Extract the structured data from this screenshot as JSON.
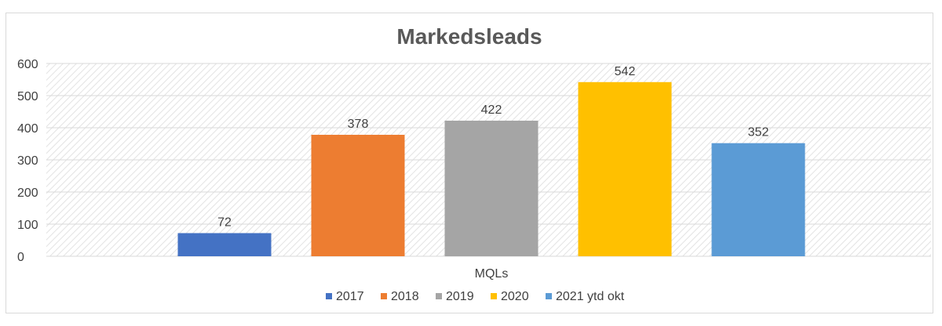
{
  "chart_data": {
    "type": "bar",
    "title": "Markedsleads",
    "categories": [
      "MQLs"
    ],
    "series": [
      {
        "name": "2017",
        "values": [
          72
        ],
        "color": "#4472c4"
      },
      {
        "name": "2018",
        "values": [
          378
        ],
        "color": "#ed7d31"
      },
      {
        "name": "2019",
        "values": [
          422
        ],
        "color": "#a5a5a5"
      },
      {
        "name": "2020",
        "values": [
          542
        ],
        "color": "#ffc000"
      },
      {
        "name": "2021 ytd okt",
        "values": [
          352
        ],
        "color": "#5b9bd5"
      }
    ],
    "xlabel": "",
    "ylabel": "",
    "ylim": [
      0,
      600
    ],
    "yticks": [
      0,
      100,
      200,
      300,
      400,
      500,
      600
    ],
    "data_labels": true,
    "grid": true,
    "legend": "bottom"
  }
}
